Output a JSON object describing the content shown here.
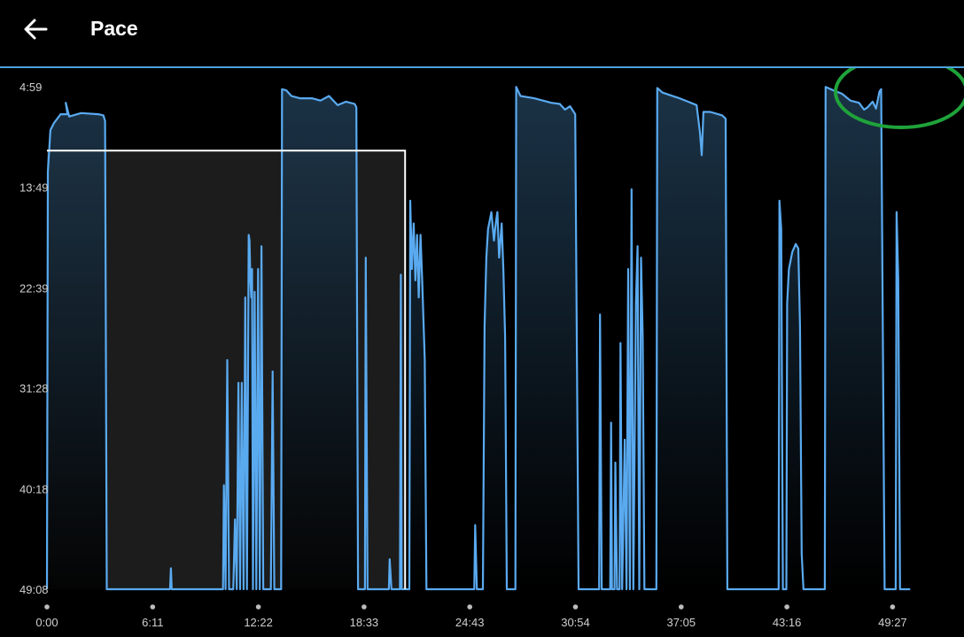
{
  "header": {
    "title": "Pace",
    "back_icon": "arrow-left-icon"
  },
  "colors": {
    "background": "#000000",
    "line": "#5aaaf0",
    "divider": "#4ea3dd",
    "selection_border": "#ffffff",
    "selection_fill": "#1c1c1c",
    "annotation": "#1fa33a",
    "tick_text": "#cfcfcf"
  },
  "chart_data": {
    "type": "area",
    "y_axis": {
      "ticks": [
        "4:59",
        "13:49",
        "22:39",
        "31:28",
        "40:18",
        "49:08"
      ],
      "reversed": true,
      "unit": "min/km",
      "range": [
        "4:59",
        "49:08"
      ]
    },
    "x_axis": {
      "ticks": [
        "0:00",
        "6:11",
        "12:22",
        "18:33",
        "24:43",
        "30:54",
        "37:05",
        "43:16",
        "49:27"
      ],
      "range_minutes": [
        0,
        53.0
      ]
    },
    "grid": false,
    "series": [
      {
        "values_note": "pace in minutes, time in minutes",
        "points": [
          [
            0.0,
            49.13
          ],
          [
            0.05,
            12.5
          ],
          [
            0.2,
            8.8
          ],
          [
            0.4,
            8.2
          ],
          [
            0.8,
            7.4
          ],
          [
            1.2,
            7.4
          ],
          [
            1.1,
            6.4
          ],
          [
            1.3,
            7.6
          ],
          [
            2.0,
            7.3
          ],
          [
            3.0,
            7.4
          ],
          [
            3.3,
            7.5
          ],
          [
            3.4,
            8.0
          ],
          [
            3.5,
            49.13
          ],
          [
            7.2,
            49.13
          ],
          [
            7.25,
            47.3
          ],
          [
            7.3,
            49.13
          ],
          [
            10.3,
            49.13
          ],
          [
            10.35,
            40.0
          ],
          [
            10.45,
            49.13
          ],
          [
            10.55,
            29.0
          ],
          [
            10.65,
            49.13
          ],
          [
            10.9,
            49.13
          ],
          [
            11.0,
            43.0
          ],
          [
            11.1,
            49.13
          ],
          [
            11.2,
            31.0
          ],
          [
            11.3,
            49.13
          ],
          [
            11.4,
            31.0
          ],
          [
            11.5,
            49.13
          ],
          [
            11.6,
            23.5
          ],
          [
            11.7,
            49.13
          ],
          [
            11.8,
            18.0
          ],
          [
            11.85,
            18.5
          ],
          [
            11.9,
            22.0
          ],
          [
            11.95,
            23.5
          ],
          [
            12.0,
            21.0
          ],
          [
            12.05,
            49.13
          ],
          [
            12.15,
            23.0
          ],
          [
            12.25,
            49.13
          ],
          [
            12.35,
            21.0
          ],
          [
            12.45,
            49.13
          ],
          [
            12.55,
            19.0
          ],
          [
            12.65,
            49.13
          ],
          [
            13.1,
            49.13
          ],
          [
            13.2,
            30.0
          ],
          [
            13.3,
            49.13
          ],
          [
            13.7,
            49.13
          ],
          [
            13.75,
            5.2
          ],
          [
            14.0,
            5.3
          ],
          [
            14.3,
            5.8
          ],
          [
            14.8,
            6.0
          ],
          [
            15.5,
            6.0
          ],
          [
            16.0,
            6.2
          ],
          [
            16.5,
            5.8
          ],
          [
            17.0,
            6.6
          ],
          [
            17.5,
            6.3
          ],
          [
            18.0,
            6.5
          ],
          [
            18.1,
            6.8
          ],
          [
            18.2,
            49.13
          ],
          [
            18.6,
            49.13
          ],
          [
            18.65,
            20.0
          ],
          [
            18.75,
            49.13
          ],
          [
            20.0,
            49.13
          ],
          [
            20.05,
            46.5
          ],
          [
            20.15,
            49.13
          ],
          [
            20.65,
            49.13
          ],
          [
            20.7,
            21.5
          ],
          [
            20.75,
            49.13
          ],
          [
            21.2,
            49.13
          ],
          [
            21.25,
            15.0
          ],
          [
            21.35,
            21.0
          ],
          [
            21.45,
            17.0
          ],
          [
            21.55,
            22.0
          ],
          [
            21.65,
            18.0
          ],
          [
            21.75,
            23.5
          ],
          [
            21.85,
            18.0
          ],
          [
            21.95,
            22.0
          ],
          [
            22.1,
            29.0
          ],
          [
            22.2,
            49.13
          ],
          [
            25.0,
            49.13
          ],
          [
            25.05,
            43.5
          ],
          [
            25.15,
            49.13
          ],
          [
            25.5,
            49.13
          ],
          [
            25.6,
            26.0
          ],
          [
            25.7,
            20.0
          ],
          [
            25.8,
            17.5
          ],
          [
            26.0,
            16.0
          ],
          [
            26.15,
            18.5
          ],
          [
            26.25,
            17.0
          ],
          [
            26.35,
            16.0
          ],
          [
            26.45,
            20.0
          ],
          [
            26.6,
            17.0
          ],
          [
            26.7,
            21.0
          ],
          [
            26.8,
            27.0
          ],
          [
            26.9,
            49.13
          ],
          [
            27.4,
            49.13
          ],
          [
            27.45,
            5.0
          ],
          [
            27.7,
            5.8
          ],
          [
            28.5,
            6.0
          ],
          [
            29.5,
            6.4
          ],
          [
            30.0,
            6.5
          ],
          [
            30.3,
            7.0
          ],
          [
            30.6,
            6.7
          ],
          [
            30.9,
            7.4
          ],
          [
            31.1,
            49.13
          ],
          [
            32.3,
            49.13
          ],
          [
            32.35,
            25.0
          ],
          [
            32.45,
            49.13
          ],
          [
            32.95,
            49.13
          ],
          [
            33.0,
            34.5
          ],
          [
            33.05,
            49.13
          ],
          [
            33.2,
            49.13
          ],
          [
            33.25,
            38.0
          ],
          [
            33.35,
            49.13
          ],
          [
            33.5,
            49.13
          ],
          [
            33.55,
            27.5
          ],
          [
            33.65,
            49.13
          ],
          [
            33.8,
            36.0
          ],
          [
            33.9,
            49.13
          ],
          [
            34.0,
            21.0
          ],
          [
            34.1,
            49.13
          ],
          [
            34.2,
            14.0
          ],
          [
            34.3,
            49.13
          ],
          [
            34.45,
            24.0
          ],
          [
            34.55,
            19.0
          ],
          [
            34.65,
            49.13
          ],
          [
            34.75,
            20.0
          ],
          [
            34.85,
            27.0
          ],
          [
            34.95,
            49.13
          ],
          [
            35.65,
            49.13
          ],
          [
            35.7,
            5.1
          ],
          [
            36.0,
            5.5
          ],
          [
            37.0,
            6.0
          ],
          [
            37.5,
            6.3
          ],
          [
            38.0,
            6.6
          ],
          [
            38.2,
            9.0
          ],
          [
            38.3,
            11.0
          ],
          [
            38.4,
            7.2
          ],
          [
            38.8,
            7.2
          ],
          [
            39.5,
            7.5
          ],
          [
            39.7,
            7.8
          ],
          [
            39.8,
            49.13
          ],
          [
            42.8,
            49.13
          ],
          [
            42.85,
            15.0
          ],
          [
            42.95,
            17.5
          ],
          [
            43.05,
            49.13
          ],
          [
            43.25,
            49.13
          ],
          [
            43.3,
            24.0
          ],
          [
            43.4,
            21.0
          ],
          [
            43.6,
            19.5
          ],
          [
            43.8,
            18.8
          ],
          [
            43.95,
            19.2
          ],
          [
            44.05,
            26.0
          ],
          [
            44.15,
            46.0
          ],
          [
            44.25,
            49.13
          ],
          [
            45.5,
            49.13
          ],
          [
            45.55,
            5.0
          ],
          [
            46.0,
            5.3
          ],
          [
            46.5,
            5.6
          ],
          [
            47.0,
            6.2
          ],
          [
            47.5,
            6.4
          ],
          [
            47.8,
            7.0
          ],
          [
            48.0,
            6.8
          ],
          [
            48.3,
            6.3
          ],
          [
            48.5,
            6.9
          ],
          [
            48.7,
            5.4
          ],
          [
            48.8,
            5.2
          ],
          [
            49.0,
            49.13
          ],
          [
            49.65,
            49.13
          ],
          [
            49.7,
            16.0
          ],
          [
            49.8,
            22.0
          ],
          [
            49.9,
            49.13
          ],
          [
            50.5,
            49.13
          ]
        ]
      }
    ],
    "selection": {
      "x_start_minutes": 0.0,
      "x_end_minutes": 20.95,
      "top_pace_minutes": 10.6
    },
    "annotation": {
      "shape": "ellipse",
      "color": "#1fa33a",
      "marks": "last interval peak"
    }
  }
}
